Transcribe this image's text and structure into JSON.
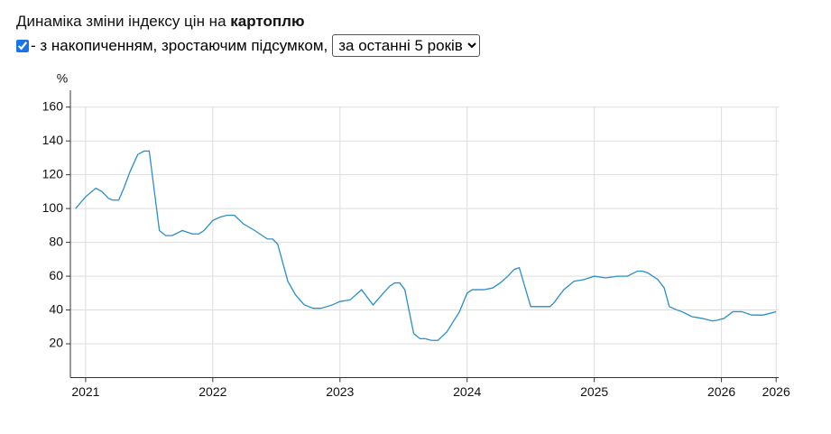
{
  "header": {
    "title_prefix": "Динаміка зміни індексу цін на",
    "title_bold": "картоплю",
    "checkbox_checked": true,
    "checkbox_label": "- з накопиченням, зростаючим підсумком,",
    "select_option": "за останні 5 років"
  },
  "chart_data": {
    "type": "line",
    "y_label": "%",
    "color": "#2a8fc8",
    "grid": true,
    "x": [
      2020.92,
      2021.0,
      2021.08,
      2021.13,
      2021.18,
      2021.21,
      2021.26,
      2021.3,
      2021.35,
      2021.41,
      2021.46,
      2021.5,
      2021.58,
      2021.63,
      2021.68,
      2021.76,
      2021.84,
      2021.89,
      2021.93,
      2022.0,
      2022.06,
      2022.11,
      2022.17,
      2022.24,
      2022.33,
      2022.43,
      2022.47,
      2022.51,
      2022.59,
      2022.65,
      2022.72,
      2022.79,
      2022.85,
      2022.94,
      2023.0,
      2023.08,
      2023.17,
      2023.26,
      2023.33,
      2023.39,
      2023.43,
      2023.47,
      2023.51,
      2023.58,
      2023.63,
      2023.67,
      2023.72,
      2023.77,
      2023.84,
      2023.89,
      2023.94,
      2024.0,
      2024.04,
      2024.13,
      2024.2,
      2024.26,
      2024.32,
      2024.37,
      2024.41,
      2024.5,
      2024.59,
      2024.65,
      2024.68,
      2024.76,
      2024.84,
      2024.92,
      2025.0,
      2025.09,
      2025.18,
      2025.26,
      2025.34,
      2025.38,
      2025.42,
      2025.5,
      2025.55,
      2025.59,
      2025.65,
      2025.69,
      2025.77,
      2025.85,
      2025.93,
      2025.97,
      2026.02,
      2026.09,
      2026.16,
      2026.24,
      2026.33,
      2026.38,
      2026.43
    ],
    "values": [
      100,
      107,
      112,
      110,
      106,
      105,
      105,
      112,
      122,
      132,
      134,
      134,
      87,
      84,
      84,
      87,
      85,
      85,
      87,
      93,
      95,
      96,
      96,
      91,
      87,
      82,
      82,
      79,
      57,
      49,
      43,
      41,
      41,
      43,
      45,
      46,
      52,
      43,
      49,
      54,
      56,
      56,
      52,
      26,
      23,
      23,
      22,
      22,
      27,
      33,
      39,
      50,
      52,
      52,
      53,
      56,
      60,
      64,
      65,
      42,
      42,
      42,
      44,
      52,
      57,
      58,
      60,
      59,
      60,
      60,
      63,
      63,
      62,
      58,
      53,
      42,
      40,
      39,
      36,
      35,
      33.5,
      34,
      35,
      39,
      39,
      37,
      37,
      38,
      39
    ],
    "xlim": [
      2020.88,
      2026.45
    ],
    "xticks": [
      2021,
      2022,
      2023,
      2024,
      2025,
      2026,
      {
        "value": 2026.43,
        "label": "2026"
      }
    ],
    "ylim": [
      0,
      170
    ],
    "yticks": [
      20,
      40,
      60,
      80,
      100,
      120,
      140,
      160
    ]
  }
}
